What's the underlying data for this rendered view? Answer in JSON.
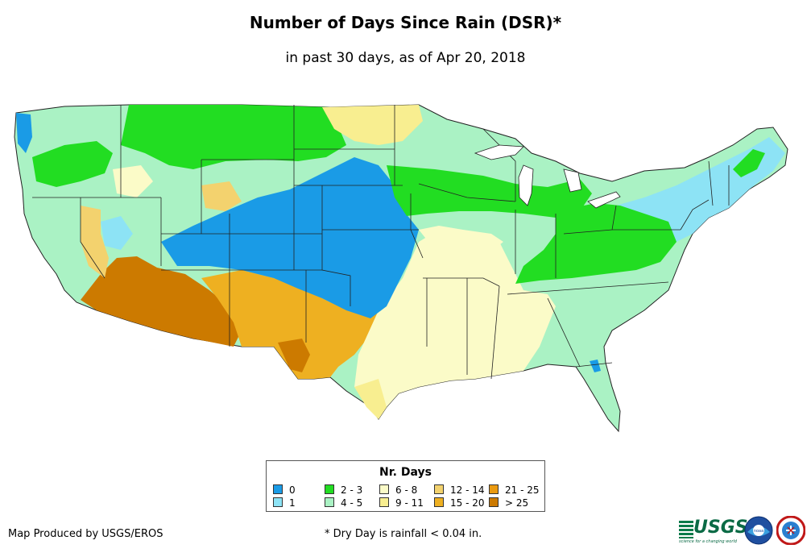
{
  "title": "Number of Days Since Rain (DSR)*",
  "subtitle": "in past 30 days, as of Apr 20, 2018",
  "legend": {
    "title": "Nr. Days",
    "items": [
      {
        "label": "0",
        "color": "#1a9be6"
      },
      {
        "label": "1",
        "color": "#8de3f5"
      },
      {
        "label": "2 - 3",
        "color": "#22dd22"
      },
      {
        "label": "4 - 5",
        "color": "#aaf2c4"
      },
      {
        "label": "6 - 8",
        "color": "#fbfbc8"
      },
      {
        "label": "9 - 11",
        "color": "#f8ee90"
      },
      {
        "label": "12 - 14",
        "color": "#f3d26e"
      },
      {
        "label": "15 - 20",
        "color": "#eeb021"
      },
      {
        "label": "21 - 25",
        "color": "#ea9a10"
      },
      {
        "label": "> 25",
        "color": "#cc7a00"
      }
    ]
  },
  "footer": {
    "credit": "Map Produced by USGS/EROS",
    "note": "* Dry Day is rainfall < 0.04 in."
  },
  "logos": {
    "usgs_word": "USGS",
    "usgs_tagline": "science for a changing world",
    "noaa": "noaa"
  }
}
